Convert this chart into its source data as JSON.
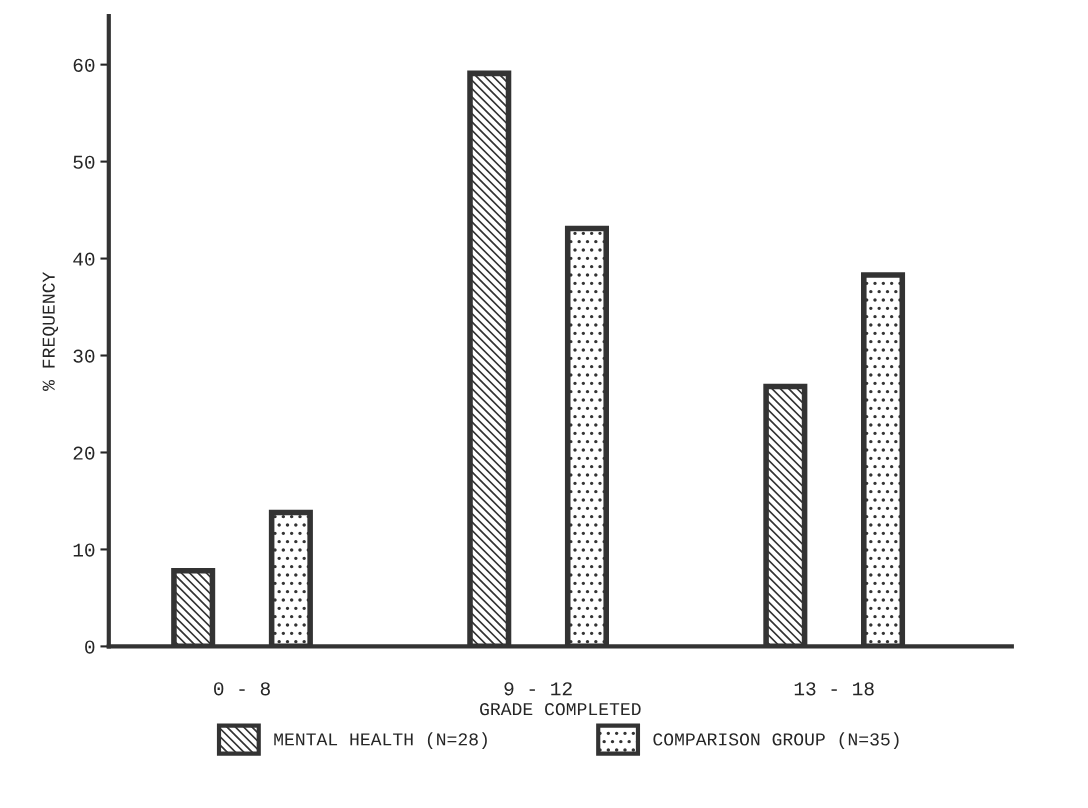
{
  "chart_data": {
    "type": "bar",
    "xlabel": "GRADE COMPLETED",
    "ylabel": "% FREQUENCY",
    "categories": [
      "0 - 8",
      "9 - 12",
      "13 - 18"
    ],
    "series": [
      {
        "name": "MENTAL HEALTH (N=28)",
        "color": "#333333",
        "values": [
          7.8,
          59.1,
          26.8
        ]
      },
      {
        "name": "COMPARISON GROUP (N=35)",
        "color": "#333333",
        "values": [
          13.8,
          43.1,
          38.3
        ]
      }
    ],
    "ylim": [
      0,
      65
    ],
    "yticks": [
      0,
      10,
      20,
      30,
      40,
      50,
      60
    ],
    "grid": false,
    "legend": "bottom"
  }
}
